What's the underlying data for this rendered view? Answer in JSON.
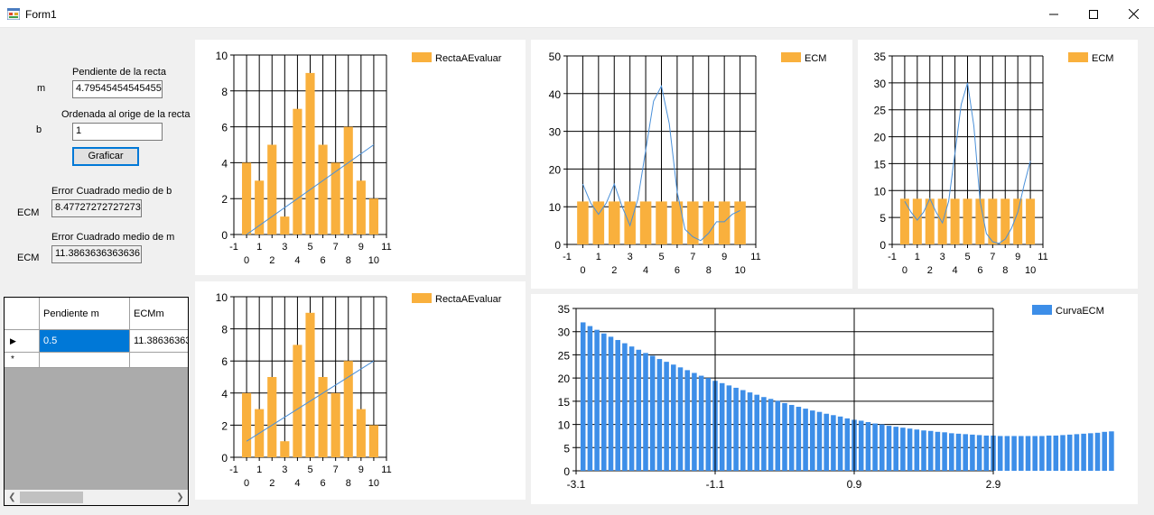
{
  "window": {
    "title": "Form1"
  },
  "form": {
    "m_label": "m",
    "m_caption": "Pendiente de la recta",
    "m_value": "4.79545454545455",
    "b_label": "b",
    "b_caption": "Ordenada al orige de la recta",
    "b_value": "1",
    "plot_button": "Graficar",
    "ecm_b_caption": "Error Cuadrado  medio de b",
    "ecm_b_label": "ECM",
    "ecm_b_value": "8.47727272727273",
    "ecm_m_caption": "Error Cuadrado medio de m",
    "ecm_m_label": "ECM",
    "ecm_m_value": "11.3863636363636"
  },
  "grid": {
    "columns": [
      "Pendiente m",
      "ECMm"
    ],
    "rows": [
      {
        "m": "0.5",
        "ecm": "11.38636363"
      }
    ],
    "new_row_marker": "*",
    "current_row_marker": "▶"
  },
  "colors": {
    "bar": "#f9b03d",
    "line": "#4a90d9",
    "curve_bar": "#3d8ee8"
  },
  "chart_data": [
    {
      "id": "chart1",
      "type": "bar",
      "legend": "RectaAEvaluar",
      "x": [
        0,
        1,
        2,
        3,
        4,
        5,
        6,
        7,
        8,
        9,
        10
      ],
      "values": [
        4,
        3,
        5,
        1,
        7,
        9,
        5,
        4,
        6,
        3,
        2
      ],
      "line": [
        [
          0,
          0
        ],
        [
          10,
          5
        ]
      ],
      "xlim": [
        -1,
        11
      ],
      "ylim": [
        0,
        10
      ],
      "yticks": [
        0,
        2,
        4,
        6,
        8,
        10
      ],
      "xticks_top": [
        "-1",
        "1",
        "3",
        "5",
        "7",
        "9",
        "11"
      ],
      "xticks_bottom": [
        "0",
        "2",
        "4",
        "6",
        "8",
        "10"
      ]
    },
    {
      "id": "chart2",
      "type": "bar",
      "legend": "RectaAEvaluar",
      "x": [
        0,
        1,
        2,
        3,
        4,
        5,
        6,
        7,
        8,
        9,
        10
      ],
      "values": [
        4,
        3,
        5,
        1,
        7,
        9,
        5,
        4,
        6,
        3,
        2
      ],
      "line": [
        [
          0,
          1
        ],
        [
          10,
          6
        ]
      ],
      "xlim": [
        -1,
        11
      ],
      "ylim": [
        0,
        10
      ],
      "yticks": [
        0,
        2,
        4,
        6,
        8,
        10
      ],
      "xticks_top": [
        "-1",
        "1",
        "3",
        "5",
        "7",
        "9",
        "11"
      ],
      "xticks_bottom": [
        "0",
        "2",
        "4",
        "6",
        "8",
        "10"
      ]
    },
    {
      "id": "chart3",
      "type": "bar",
      "legend": "ECM",
      "x": [
        0,
        1,
        2,
        3,
        4,
        5,
        6,
        7,
        8,
        9,
        10
      ],
      "values": [
        11.39,
        11.39,
        11.39,
        11.39,
        11.39,
        11.39,
        11.39,
        11.39,
        11.39,
        11.39,
        11.39
      ],
      "line_points": [
        [
          0,
          16
        ],
        [
          0.5,
          11
        ],
        [
          1,
          8
        ],
        [
          1.5,
          11
        ],
        [
          2,
          16
        ],
        [
          2.5,
          10
        ],
        [
          3,
          5
        ],
        [
          3.5,
          12
        ],
        [
          4,
          25
        ],
        [
          4.5,
          38
        ],
        [
          5,
          42
        ],
        [
          5.5,
          32
        ],
        [
          6,
          14
        ],
        [
          6.5,
          4
        ],
        [
          7,
          2
        ],
        [
          7.5,
          1
        ],
        [
          8,
          3
        ],
        [
          8.5,
          6
        ],
        [
          9,
          6
        ],
        [
          9.5,
          8
        ],
        [
          10,
          9
        ]
      ],
      "xlim": [
        -1,
        11
      ],
      "ylim": [
        0,
        50
      ],
      "yticks": [
        0,
        10,
        20,
        30,
        40,
        50
      ],
      "xticks_top": [
        "-1",
        "1",
        "3",
        "5",
        "7",
        "9",
        "11"
      ],
      "xticks_bottom": [
        "0",
        "2",
        "4",
        "6",
        "8",
        "10"
      ]
    },
    {
      "id": "chart4",
      "type": "bar",
      "legend": "ECM",
      "x": [
        0,
        1,
        2,
        3,
        4,
        5,
        6,
        7,
        8,
        9,
        10
      ],
      "values": [
        8.48,
        8.48,
        8.48,
        8.48,
        8.48,
        8.48,
        8.48,
        8.48,
        8.48,
        8.48,
        8.48
      ],
      "line_points": [
        [
          0,
          8
        ],
        [
          0.5,
          6
        ],
        [
          1,
          4.5
        ],
        [
          1.5,
          6
        ],
        [
          2,
          8.5
        ],
        [
          2.5,
          6
        ],
        [
          3,
          4
        ],
        [
          3.5,
          8
        ],
        [
          4,
          17
        ],
        [
          4.5,
          26
        ],
        [
          5,
          30
        ],
        [
          5.5,
          22
        ],
        [
          6,
          8
        ],
        [
          6.5,
          2
        ],
        [
          7,
          0.5
        ],
        [
          7.5,
          0.2
        ],
        [
          8,
          1
        ],
        [
          8.5,
          3
        ],
        [
          9,
          6
        ],
        [
          9.5,
          11
        ],
        [
          10,
          15.5
        ]
      ],
      "xlim": [
        -1,
        11
      ],
      "ylim": [
        0,
        35
      ],
      "yticks": [
        0,
        5,
        10,
        15,
        20,
        25,
        30,
        35
      ],
      "xticks_top": [
        "-1",
        "1",
        "3",
        "5",
        "7",
        "9",
        "11"
      ],
      "xticks_bottom": [
        "0",
        "2",
        "4",
        "6",
        "8",
        "10"
      ]
    },
    {
      "id": "curva",
      "type": "bar",
      "legend": "CurvaECM",
      "x_start": -3.0,
      "x_step": 0.1,
      "values": [
        32,
        31.2,
        30.4,
        29.6,
        28.9,
        28.2,
        27.5,
        26.8,
        26.1,
        25.4,
        24.8,
        24.1,
        23.5,
        22.9,
        22.3,
        21.7,
        21.1,
        20.5,
        20,
        19.4,
        18.9,
        18.4,
        17.9,
        17.4,
        16.9,
        16.4,
        15.9,
        15.5,
        15.1,
        14.6,
        14.2,
        13.8,
        13.4,
        13,
        12.7,
        12.3,
        12,
        11.7,
        11.3,
        11,
        10.8,
        10.5,
        10.2,
        10,
        9.7,
        9.5,
        9.3,
        9.1,
        8.9,
        8.7,
        8.6,
        8.4,
        8.3,
        8.1,
        8,
        7.9,
        7.8,
        7.7,
        7.6,
        7.6,
        7.5,
        7.5,
        7.5,
        7.5,
        7.5,
        7.5,
        7.5,
        7.6,
        7.6,
        7.7,
        7.8,
        7.9,
        8,
        8.1,
        8.2,
        8.4,
        8.5
      ],
      "xlim": [
        -3.1,
        2.9
      ],
      "ylim": [
        0,
        35
      ],
      "yticks": [
        0,
        5,
        10,
        15,
        20,
        25,
        30,
        35
      ],
      "xticks": [
        "-3.1",
        "-1.1",
        "0.9",
        "2.9"
      ]
    }
  ]
}
